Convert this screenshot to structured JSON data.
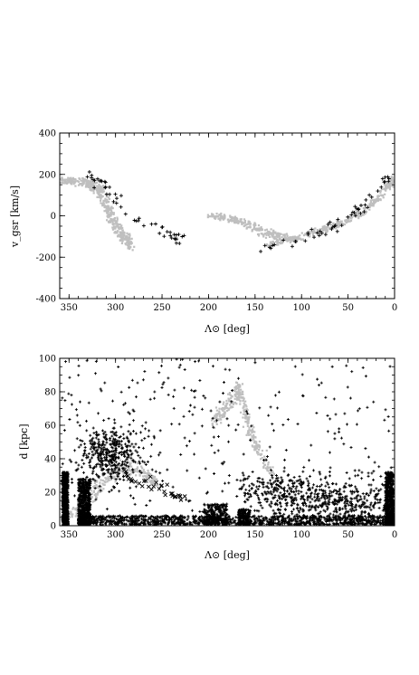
{
  "chart_data": [
    {
      "type": "scatter",
      "xlabel": "Λ⊙ [deg]",
      "ylabel": "v_gsr [km/s]",
      "xlim": [
        360,
        0
      ],
      "ylim": [
        -400,
        400
      ],
      "x_inverted": true,
      "xticks": [
        350,
        300,
        250,
        200,
        150,
        100,
        50,
        0
      ],
      "yticks": [
        -400,
        -200,
        0,
        200,
        400
      ],
      "grid": false,
      "series": [
        {
          "color": "#bfbfbf",
          "style": "model-cloud",
          "ribbons": [
            {
              "x": [
                358,
                345,
                330,
                320,
                312,
                305,
                298,
                290,
                282
              ],
              "y": [
                170,
                168,
                160,
                135,
                80,
                0,
                -60,
                -110,
                -150
              ],
              "width": [
                30,
                30,
                35,
                45,
                70,
                85,
                80,
                60,
                40
              ],
              "n": 450
            },
            {
              "x": [
                200,
                185,
                170,
                155,
                140,
                125,
                112
              ],
              "y": [
                0,
                -5,
                -25,
                -50,
                -80,
                -100,
                -110
              ],
              "width": [
                18,
                25,
                30,
                35,
                40,
                30,
                24
              ],
              "n": 250
            },
            {
              "x": [
                135,
                115,
                95,
                75,
                55,
                35,
                18,
                5,
                0
              ],
              "y": [
                -140,
                -118,
                -95,
                -65,
                -30,
                15,
                80,
                150,
                185
              ],
              "width": [
                22,
                24,
                26,
                28,
                28,
                28,
                26,
                24,
                22
              ],
              "n": 330
            }
          ]
        },
        {
          "color": "#000000",
          "style": "observed-stars",
          "tracks": [
            {
              "x": [
                330,
                318,
                308,
                298,
                286,
                272,
                255,
                240,
                228
              ],
              "y": [
                195,
                165,
                120,
                70,
                10,
                -30,
                -60,
                -90,
                -115
              ],
              "scatter": 18,
              "n": 50
            },
            {
              "x": [
                140,
                120,
                100,
                80,
                60,
                40,
                25,
                12,
                5
              ],
              "y": [
                -165,
                -140,
                -110,
                -80,
                -45,
                20,
                95,
                155,
                175
              ],
              "scatter": 14,
              "n": 55
            }
          ]
        }
      ]
    },
    {
      "type": "scatter",
      "xlabel": "Λ⊙ [deg]",
      "ylabel": "d [kpc]",
      "xlim": [
        360,
        0
      ],
      "ylim": [
        0,
        100
      ],
      "x_inverted": true,
      "xticks": [
        350,
        300,
        250,
        200,
        150,
        100,
        50,
        0
      ],
      "yticks": [
        0,
        20,
        40,
        60,
        80,
        100
      ],
      "grid": false,
      "series": [
        {
          "color": "#bfbfbf",
          "style": "model-cloud",
          "ribbons": [
            {
              "x": [
                350,
                330,
                310,
                290,
                270,
                255
              ],
              "y": [
                5,
                15,
                28,
                35,
                32,
                25
              ],
              "width": [
                4,
                6,
                8,
                8,
                6,
                4
              ],
              "n": 260
            },
            {
              "x": [
                195,
                185,
                175,
                168,
                162,
                155,
                145,
                130
              ],
              "y": [
                62,
                68,
                75,
                82,
                72,
                55,
                42,
                30
              ],
              "width": [
                6,
                8,
                10,
                8,
                8,
                7,
                6,
                5
              ],
              "n": 320
            }
          ]
        },
        {
          "color": "#000000",
          "style": "observed-stars",
          "bands": [
            {
              "xmin": 351,
              "xmax": 357,
              "dmin": 0,
              "dmax": 32,
              "n": 750
            },
            {
              "xmin": 327,
              "xmax": 340,
              "dmin": 0,
              "dmax": 28,
              "n": 650
            },
            {
              "xmin": 180,
              "xmax": 205,
              "dmin": 0,
              "dmax": 13,
              "n": 300
            },
            {
              "xmin": 155,
              "xmax": 168,
              "dmin": 0,
              "dmax": 10,
              "n": 200
            },
            {
              "xmin": 0,
              "xmax": 10,
              "dmin": 0,
              "dmax": 32,
              "n": 650
            },
            {
              "xmin": 0,
              "xmax": 340,
              "dmin": 0,
              "dmax": 6,
              "n": 1400
            }
          ],
          "clumps": [
            {
              "x": 305,
              "d": 42,
              "sx": 16,
              "sy": 8,
              "n": 380
            },
            {
              "x": 55,
              "d": 15,
              "sx": 30,
              "sy": 6,
              "n": 350
            },
            {
              "x": 120,
              "d": 20,
              "sx": 25,
              "sy": 6,
              "n": 250
            }
          ],
          "tracks": [
            {
              "x": [
                290,
                270,
                255,
                240,
                228
              ],
              "y": [
                30,
                27,
                24,
                20,
                15
              ],
              "scatter": 2,
              "n": 35,
              "marker": "x"
            }
          ],
          "background": {
            "n": 320,
            "dmin": 0,
            "dmax": 100
          }
        }
      ]
    }
  ]
}
